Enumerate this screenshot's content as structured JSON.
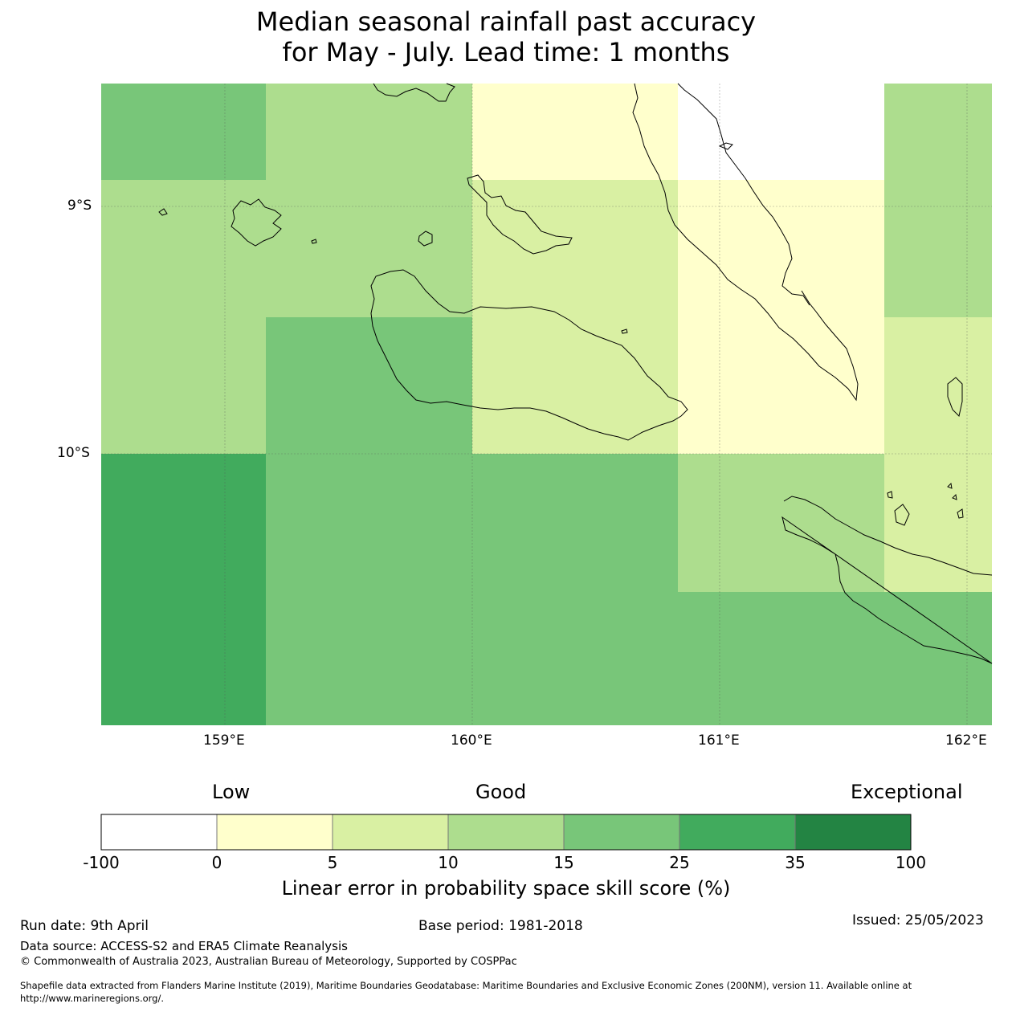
{
  "title": {
    "line1": "Median seasonal rainfall past accuracy",
    "line2": "for May - July. Lead time: 1 months"
  },
  "map": {
    "lat_labels": [
      "9°S",
      "10°S"
    ],
    "lon_labels": [
      "159°E",
      "160°E",
      "161°E",
      "162°E"
    ],
    "lat_range": [
      -11.1,
      -8.5
    ],
    "lon_range": [
      158.5,
      162.1
    ],
    "grid_cells": [
      {
        "row": 0,
        "col": 0,
        "category": 15
      },
      {
        "row": 0,
        "col": 1,
        "category": 10
      },
      {
        "row": 0,
        "col": 2,
        "category": 0
      },
      {
        "row": 0,
        "col": 3,
        "category": -100
      },
      {
        "row": 0,
        "col": 4,
        "category": 10
      },
      {
        "row": 1,
        "col": 0,
        "category": 10
      },
      {
        "row": 1,
        "col": 1,
        "category": 10
      },
      {
        "row": 1,
        "col": 2,
        "category": 5
      },
      {
        "row": 1,
        "col": 3,
        "category": 0
      },
      {
        "row": 1,
        "col": 4,
        "category": 10
      },
      {
        "row": 2,
        "col": 0,
        "category": 10
      },
      {
        "row": 2,
        "col": 1,
        "category": 15
      },
      {
        "row": 2,
        "col": 2,
        "category": 5
      },
      {
        "row": 2,
        "col": 3,
        "category": 0
      },
      {
        "row": 2,
        "col": 4,
        "category": 5
      },
      {
        "row": 3,
        "col": 0,
        "category": 25
      },
      {
        "row": 3,
        "col": 1,
        "category": 15
      },
      {
        "row": 3,
        "col": 2,
        "category": 15
      },
      {
        "row": 3,
        "col": 3,
        "category": 10
      },
      {
        "row": 3,
        "col": 4,
        "category": 5
      },
      {
        "row": 4,
        "col": 0,
        "category": 25
      },
      {
        "row": 4,
        "col": 1,
        "category": 15
      },
      {
        "row": 4,
        "col": 2,
        "category": 15
      },
      {
        "row": 4,
        "col": 3,
        "category": 15
      },
      {
        "row": 4,
        "col": 4,
        "category": 15
      }
    ]
  },
  "colorbar": {
    "word_low": "Low",
    "word_good": "Good",
    "word_exceptional": "Exceptional",
    "ticks": [
      "-100",
      "0",
      "5",
      "10",
      "15",
      "25",
      "35",
      "100"
    ],
    "colors": [
      "#ffffff",
      "#ffffcc",
      "#d9f0a3",
      "#addd8e",
      "#78c679",
      "#41ab5d",
      "#238443"
    ],
    "title": "Linear error in probability space skill score (%)"
  },
  "footer": {
    "run_date": "Run date: 9th April",
    "base_period": "Base period: 1981-2018",
    "issued": "Issued: 25/05/2023",
    "data_source": "Data source: ACCESS-S2 and ERA5 Climate Reanalysis",
    "copyright": "© Commonwealth of Australia 2023, Australian Bureau of Meteorology, Supported by COSPPac",
    "shapefile_line1": "Shapefile data extracted from Flanders Marine Institute (2019), Maritime Boundaries Geodatabase: Maritime Boundaries and Exclusive Economic Zones (200NM), version 11. Available online at",
    "shapefile_line2": "http://www.marineregions.org/."
  }
}
